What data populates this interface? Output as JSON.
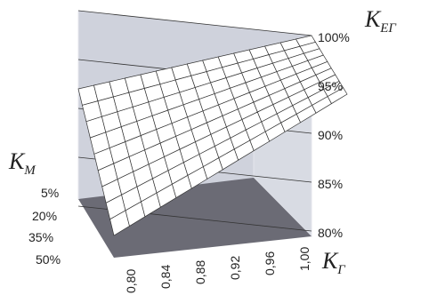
{
  "chart_data": {
    "type": "surface",
    "x_name": "К",
    "x_sub": "Г",
    "y_name": "К",
    "y_sub": "М",
    "z_name": "К",
    "z_sub": "ЕГ",
    "x": [
      "0,80",
      "0,84",
      "0,88",
      "0,92",
      "0,96",
      "1,00"
    ],
    "y": [
      "5%",
      "20%",
      "35%",
      "50%"
    ],
    "z_ticks": [
      "80%",
      "85%",
      "90%",
      "95%",
      "100%"
    ],
    "zlim": [
      80,
      100
    ],
    "z_by_y": [
      [
        92.0,
        93.6,
        95.2,
        96.8,
        98.4,
        100.0
      ],
      [
        89.0,
        91.2,
        93.4,
        95.6,
        97.8,
        100.0
      ],
      [
        86.0,
        88.8,
        91.6,
        94.4,
        97.2,
        100.0
      ],
      [
        83.0,
        86.4,
        89.8,
        93.2,
        96.6,
        100.0
      ]
    ],
    "colors": {
      "wall": "#cfd2dc",
      "wall_edge": "#e4e6ec",
      "floor": "#6b6b75",
      "surface": "#ffffff",
      "surface_under": "#3d3f48",
      "mesh": "#333333"
    }
  }
}
